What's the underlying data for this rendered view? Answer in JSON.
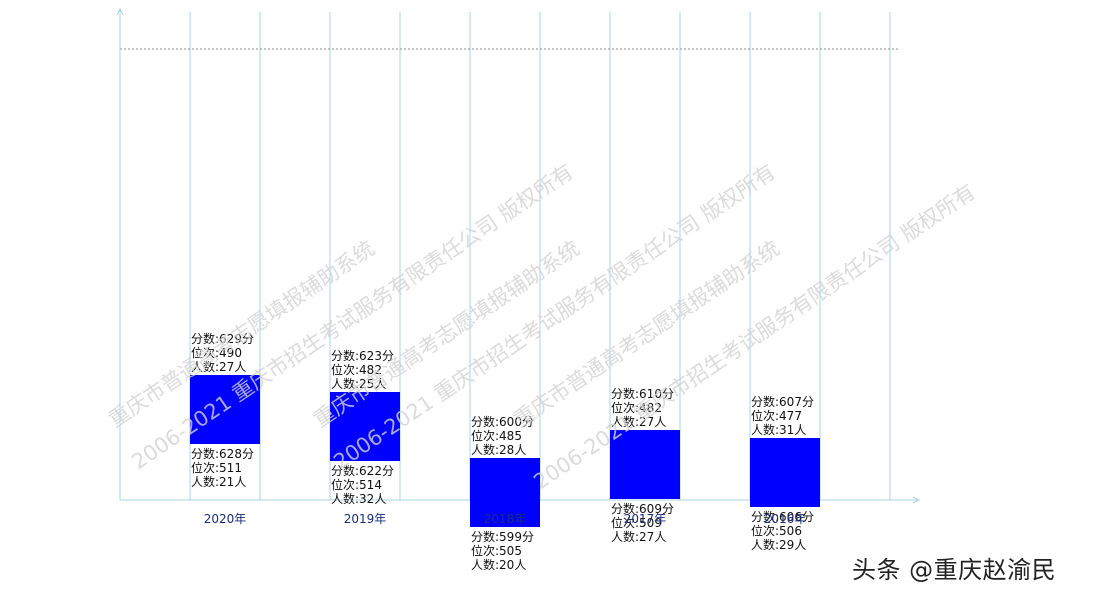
{
  "chart_data": {
    "type": "floating-bar",
    "categories": [
      "2020年",
      "2019年",
      "2018年",
      "2017年",
      "2016年"
    ],
    "bars": [
      {
        "top": {
          "score": "629分",
          "rank": "490",
          "count": "27人"
        },
        "bottom": {
          "score": "628分",
          "rank": "511",
          "count": "21人"
        }
      },
      {
        "top": {
          "score": "623分",
          "rank": "482",
          "count": "25人"
        },
        "bottom": {
          "score": "622分",
          "rank": "514",
          "count": "32人"
        }
      },
      {
        "top": {
          "score": "600分",
          "rank": "485",
          "count": "28人"
        },
        "bottom": {
          "score": "599分",
          "rank": "505",
          "count": "20人"
        }
      },
      {
        "top": {
          "score": "610分",
          "rank": "482",
          "count": "27人"
        },
        "bottom": {
          "score": "609分",
          "rank": "509",
          "count": "27人"
        }
      },
      {
        "top": {
          "score": "607分",
          "rank": "477",
          "count": "31人"
        },
        "bottom": {
          "score": "606分",
          "rank": "506",
          "count": "29人"
        }
      }
    ],
    "top_values": [
      629,
      623,
      600,
      610,
      607
    ],
    "bottom_values": [
      628,
      622,
      599,
      609,
      606
    ],
    "label_prefixes": {
      "score": "分数:",
      "rank": "位次:",
      "count": "人数:"
    },
    "bar_color": "#0000ff",
    "grid": true
  },
  "watermarks": [
    "重庆市普通高考志愿填报辅助系统",
    "2006-2021 重庆市招生考试服务有限责任公司 版权所有"
  ],
  "credit": "头条 @重庆赵渝民"
}
